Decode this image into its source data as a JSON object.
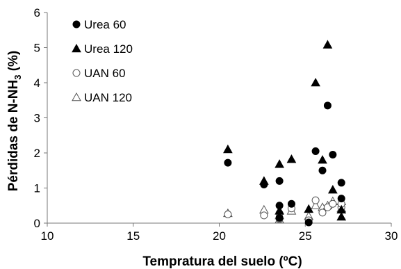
{
  "chart_data": {
    "type": "scatter",
    "xlabel": "Tempratura del suelo (ºC)",
    "ylabel": {
      "prefix": "Pérdidas de N-NH",
      "subscript": "3",
      "suffix": " (%)"
    },
    "xlim": [
      10,
      30
    ],
    "ylim": [
      0,
      6
    ],
    "xticks": [
      10,
      15,
      20,
      25,
      30
    ],
    "yticks": [
      0,
      1,
      2,
      3,
      4,
      5,
      6
    ],
    "grid": false,
    "legend_position": "top-left",
    "series": [
      {
        "name": "Urea 60",
        "marker": "circle-filled",
        "points": [
          [
            20.5,
            1.72
          ],
          [
            22.6,
            1.1
          ],
          [
            23.5,
            1.2
          ],
          [
            23.5,
            0.5
          ],
          [
            23.5,
            0.15
          ],
          [
            24.2,
            0.55
          ],
          [
            25.2,
            0.02
          ],
          [
            25.6,
            2.05
          ],
          [
            26.0,
            1.5
          ],
          [
            26.3,
            3.35
          ],
          [
            26.6,
            1.95
          ],
          [
            27.1,
            1.15
          ],
          [
            27.1,
            0.7
          ]
        ]
      },
      {
        "name": "Urea 120",
        "marker": "triangle-filled",
        "points": [
          [
            20.5,
            2.1
          ],
          [
            22.6,
            1.2
          ],
          [
            23.5,
            1.68
          ],
          [
            23.5,
            0.35
          ],
          [
            24.2,
            1.82
          ],
          [
            25.2,
            0.4
          ],
          [
            25.6,
            4.0
          ],
          [
            26.0,
            1.8
          ],
          [
            26.3,
            5.08
          ],
          [
            26.6,
            0.95
          ],
          [
            27.1,
            0.38
          ],
          [
            27.1,
            0.18
          ]
        ]
      },
      {
        "name": "UAN 60",
        "marker": "circle-open",
        "points": [
          [
            20.5,
            0.25
          ],
          [
            22.6,
            0.22
          ],
          [
            23.5,
            0.28
          ],
          [
            23.5,
            0.12
          ],
          [
            24.2,
            0.42
          ],
          [
            25.2,
            0.08
          ],
          [
            25.6,
            0.65
          ],
          [
            26.0,
            0.3
          ],
          [
            26.3,
            0.45
          ],
          [
            26.6,
            0.55
          ],
          [
            27.1,
            0.45
          ],
          [
            27.1,
            0.55
          ]
        ]
      },
      {
        "name": "UAN 120",
        "marker": "triangle-open",
        "points": [
          [
            20.5,
            0.28
          ],
          [
            22.6,
            0.38
          ],
          [
            23.5,
            0.22
          ],
          [
            23.5,
            0.1
          ],
          [
            24.2,
            0.35
          ],
          [
            25.2,
            0.2
          ],
          [
            25.6,
            0.5
          ],
          [
            26.0,
            0.45
          ],
          [
            26.3,
            0.5
          ],
          [
            26.6,
            0.62
          ],
          [
            27.1,
            0.62
          ],
          [
            27.1,
            0.42
          ]
        ]
      }
    ]
  }
}
